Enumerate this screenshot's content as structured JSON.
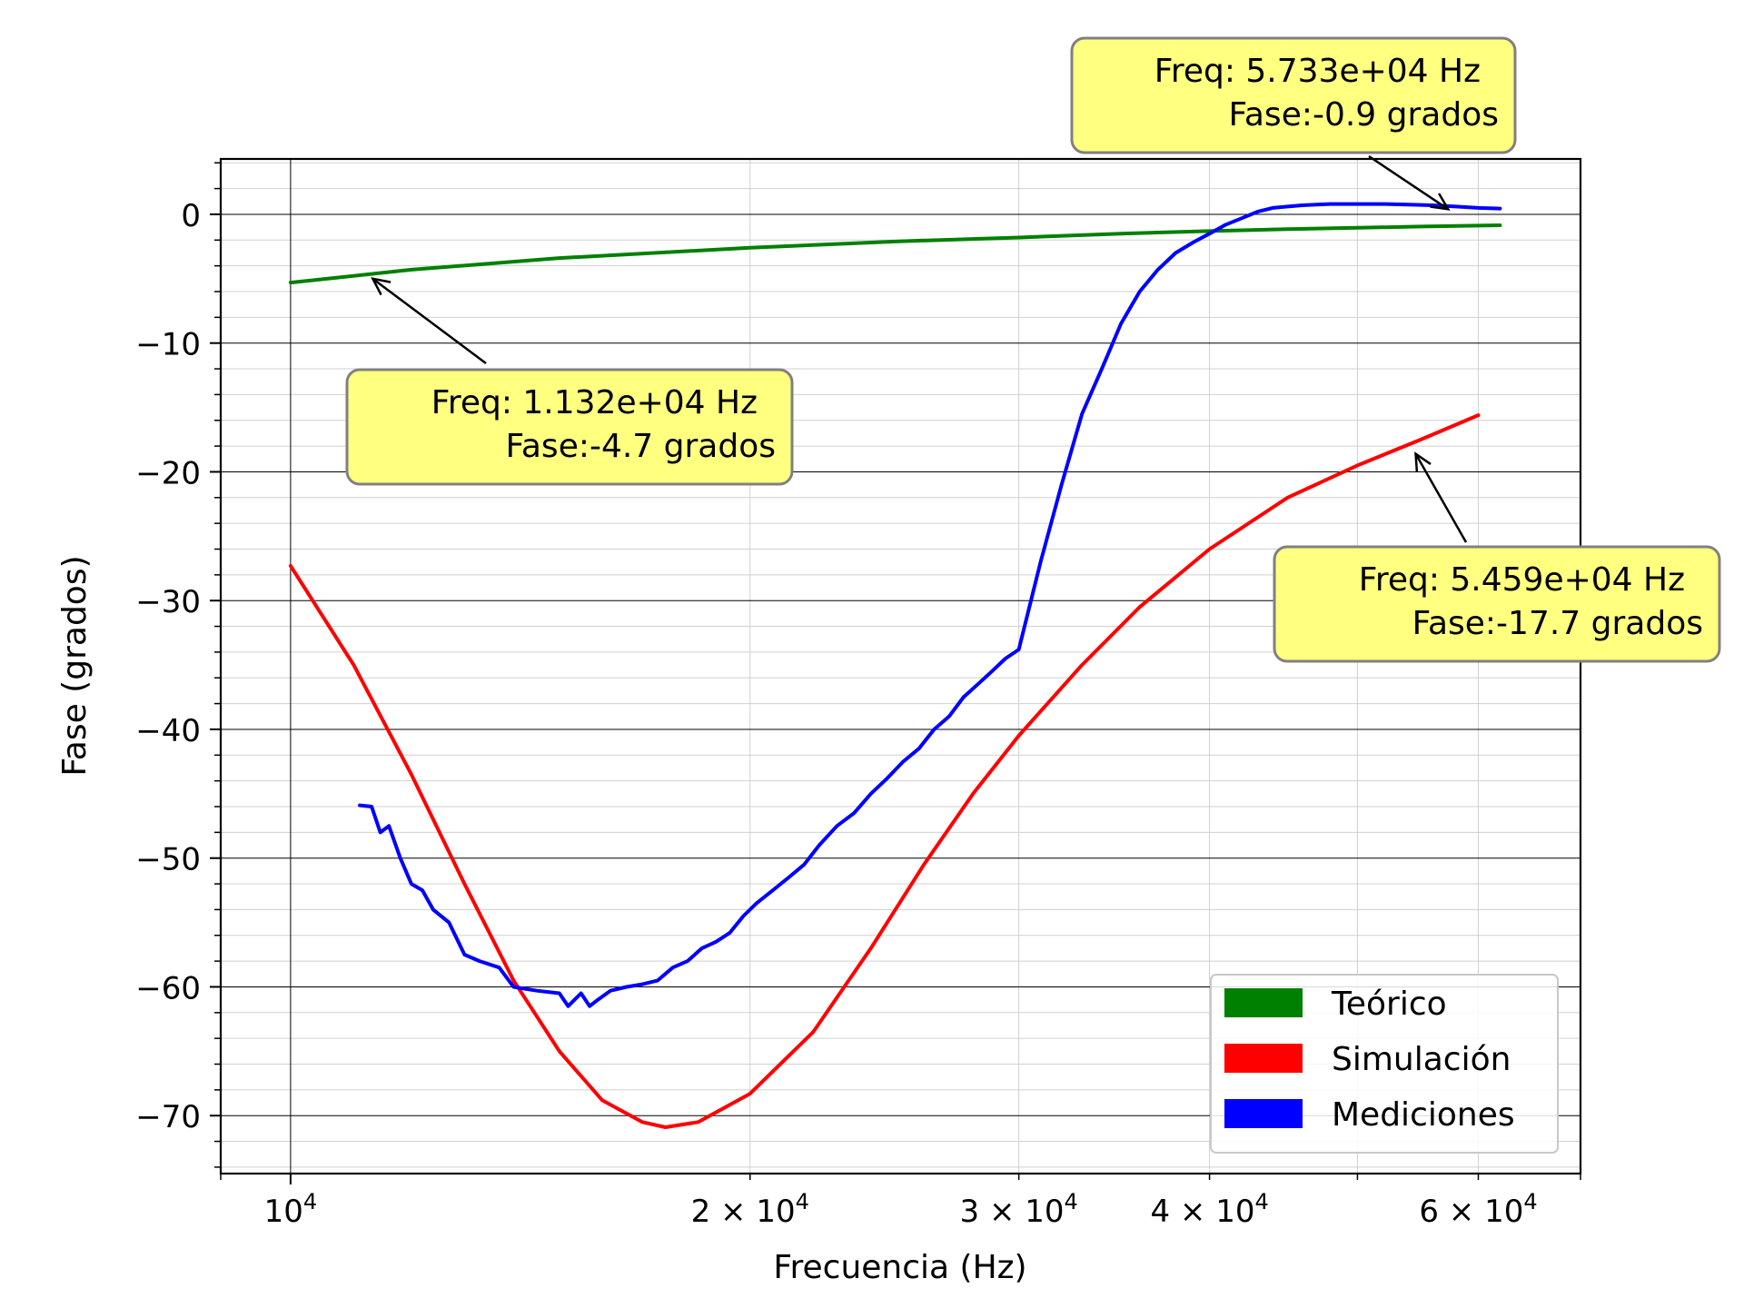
{
  "chart_data": {
    "type": "line",
    "xlabel": "Frecuencia (Hz)",
    "ylabel": "Fase (grados)",
    "xscale": "log",
    "xlim": [
      9000,
      70000
    ],
    "ylim": [
      -74.5,
      4.3
    ],
    "grid": "major and minor",
    "legend_position": "lower-right",
    "x_ticks": [
      {
        "value": 10000,
        "label": "10",
        "exp": "4"
      },
      {
        "value": 20000,
        "label": "2 × 10",
        "exp": "4"
      },
      {
        "value": 30000,
        "label": "3 × 10",
        "exp": "4"
      },
      {
        "value": 40000,
        "label": "4 × 10",
        "exp": "4"
      },
      {
        "value": 60000,
        "label": "6 × 10",
        "exp": "4"
      }
    ],
    "y_ticks": [
      {
        "value": 0,
        "label": "0"
      },
      {
        "value": -10,
        "label": "−10"
      },
      {
        "value": -20,
        "label": "−20"
      },
      {
        "value": -30,
        "label": "−30"
      },
      {
        "value": -40,
        "label": "−40"
      },
      {
        "value": -50,
        "label": "−50"
      },
      {
        "value": -60,
        "label": "−60"
      },
      {
        "value": -70,
        "label": "−70"
      }
    ],
    "series": [
      {
        "name": "Teórico",
        "color": "#008000",
        "x": [
          10000,
          12000,
          15000,
          20000,
          25000,
          30000,
          35000,
          40000,
          45000,
          50000,
          55000,
          62000
        ],
        "y": [
          -5.3,
          -4.3,
          -3.4,
          -2.6,
          -2.1,
          -1.8,
          -1.5,
          -1.3,
          -1.15,
          -1.05,
          -0.95,
          -0.85
        ]
      },
      {
        "name": "Simulación",
        "color": "#ff0000",
        "x": [
          10000,
          11000,
          12000,
          13000,
          14000,
          15000,
          16000,
          17000,
          17600,
          18500,
          20000,
          22000,
          24000,
          26000,
          28000,
          30000,
          33000,
          36000,
          40000,
          45000,
          50000,
          55000,
          60000
        ],
        "y": [
          -27.3,
          -35.0,
          -43.5,
          -52.0,
          -59.5,
          -65.0,
          -68.8,
          -70.5,
          -70.9,
          -70.5,
          -68.3,
          -63.5,
          -57.0,
          -50.5,
          -45.0,
          -40.5,
          -35.0,
          -30.5,
          -26.0,
          -22.0,
          -19.5,
          -17.5,
          -15.6
        ]
      },
      {
        "name": "Mediciones",
        "color": "#0000ff",
        "x": [
          11100,
          11300,
          11450,
          11600,
          11800,
          12000,
          12200,
          12400,
          12700,
          13000,
          13300,
          13700,
          14000,
          14500,
          15000,
          15200,
          15500,
          15700,
          15900,
          16200,
          16600,
          17000,
          17400,
          17800,
          18200,
          18600,
          19000,
          19400,
          19800,
          20200,
          20700,
          21200,
          21700,
          22200,
          22800,
          23400,
          24000,
          24600,
          25200,
          25800,
          26400,
          27000,
          27600,
          28200,
          28800,
          29400,
          30000,
          31000,
          32000,
          33000,
          34000,
          35000,
          36000,
          37000,
          38000,
          39000,
          40000,
          41000,
          42000,
          43000,
          44000,
          45000,
          46000,
          47000,
          48000,
          50000,
          52000,
          54000,
          56000,
          58000,
          60000,
          62000
        ],
        "y": [
          -45.9,
          -46.0,
          -48.0,
          -47.5,
          -50.0,
          -52.0,
          -52.5,
          -54.0,
          -55.0,
          -57.5,
          -58.0,
          -58.5,
          -60.0,
          -60.3,
          -60.5,
          -61.5,
          -60.5,
          -61.5,
          -61.0,
          -60.3,
          -60.0,
          -59.8,
          -59.5,
          -58.5,
          -58.0,
          -57.0,
          -56.5,
          -55.8,
          -54.5,
          -53.5,
          -52.5,
          -51.5,
          -50.5,
          -49.0,
          -47.5,
          -46.5,
          -45.0,
          -43.8,
          -42.5,
          -41.5,
          -40.0,
          -39.0,
          -37.5,
          -36.5,
          -35.5,
          -34.5,
          -33.8,
          -27.0,
          -21.0,
          -15.5,
          -12.0,
          -8.5,
          -6.0,
          -4.3,
          -3.0,
          -2.2,
          -1.5,
          -0.8,
          -0.3,
          0.2,
          0.5,
          0.6,
          0.7,
          0.75,
          0.8,
          0.8,
          0.8,
          0.75,
          0.7,
          0.6,
          0.5,
          0.45
        ]
      }
    ],
    "annotations": [
      {
        "freq_label": "Freq: 1.132e+04  Hz",
        "phase_label": "Fase:-4.7 grados",
        "point": {
          "x": 11320,
          "y": -5.0
        }
      },
      {
        "freq_label": "Freq: 5.733e+04  Hz",
        "phase_label": "Fase:-0.9 grados",
        "point": {
          "x": 57330,
          "y": 0.4
        }
      },
      {
        "freq_label": "Freq: 5.459e+04  Hz",
        "phase_label": "Fase:-17.7 grados",
        "point": {
          "x": 54590,
          "y": -18.6
        }
      }
    ],
    "colors": {
      "annotation_fill": "#ffff80",
      "annotation_border": "#808080",
      "grid_major": "#000000",
      "grid_minor": "#d0d0d0"
    }
  }
}
